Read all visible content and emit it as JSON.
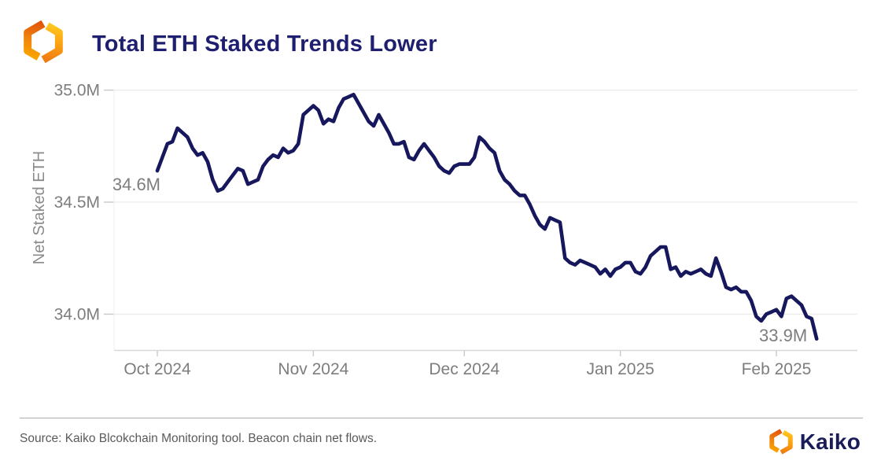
{
  "header": {
    "title": "Total ETH Staked Trends Lower",
    "logo_icon": "kaiko-hexagon-logo"
  },
  "footer": {
    "source_text": "Source: Kaiko Blcokchain Monitoring tool. Beacon chain net flows.",
    "brand_name": "Kaiko",
    "brand_icon": "kaiko-hexagon-logo"
  },
  "colors": {
    "title_navy": "#1f1f70",
    "line_navy": "#17175e",
    "brand_orange_dark": "#e35a0c",
    "brand_orange_light": "#ffbd1c",
    "axis_gray": "#7d7d7d"
  },
  "chart_data": {
    "type": "line",
    "title": "Total ETH Staked Trends Lower",
    "xlabel": "",
    "ylabel": "Net Staked ETH",
    "x_unit": "days since Oct 1 2024",
    "xlim": [
      -8.6,
      139.1
    ],
    "ylim": [
      33.84,
      35.023
    ],
    "grid": "horizontal",
    "line_color": "#17175e",
    "x_ticks": [
      {
        "day": 0,
        "label": "Oct 2024"
      },
      {
        "day": 31,
        "label": "Nov 2024"
      },
      {
        "day": 61,
        "label": "Dec 2024"
      },
      {
        "day": 92,
        "label": "Jan 2025"
      },
      {
        "day": 123,
        "label": "Feb 2025"
      }
    ],
    "y_ticks": [
      {
        "value": 34.0,
        "label": "34.0M"
      },
      {
        "value": 34.5,
        "label": "34.5M"
      },
      {
        "value": 35.0,
        "label": "35.0M"
      }
    ],
    "annotations": [
      {
        "text": "34.6M",
        "day": 0,
        "value": 34.64
      },
      {
        "text": "33.9M",
        "day": 131,
        "value": 33.89
      }
    ],
    "series": [
      {
        "name": "Net Staked ETH (millions)",
        "points": [
          [
            0,
            34.64
          ],
          [
            1,
            34.7
          ],
          [
            2,
            34.76
          ],
          [
            3,
            34.77
          ],
          [
            4,
            34.83
          ],
          [
            5,
            34.81
          ],
          [
            6,
            34.79
          ],
          [
            7,
            34.74
          ],
          [
            8,
            34.71
          ],
          [
            9,
            34.72
          ],
          [
            10,
            34.68
          ],
          [
            11,
            34.6
          ],
          [
            12,
            34.55
          ],
          [
            13,
            34.56
          ],
          [
            14,
            34.59
          ],
          [
            15,
            34.62
          ],
          [
            16,
            34.65
          ],
          [
            17,
            34.64
          ],
          [
            18,
            34.58
          ],
          [
            19,
            34.59
          ],
          [
            20,
            34.6
          ],
          [
            21,
            34.66
          ],
          [
            22,
            34.69
          ],
          [
            23,
            34.71
          ],
          [
            24,
            34.7
          ],
          [
            25,
            34.74
          ],
          [
            26,
            34.72
          ],
          [
            27,
            34.73
          ],
          [
            28,
            34.76
          ],
          [
            29,
            34.89
          ],
          [
            30,
            34.91
          ],
          [
            31,
            34.93
          ],
          [
            32,
            34.91
          ],
          [
            33,
            34.85
          ],
          [
            34,
            34.87
          ],
          [
            35,
            34.86
          ],
          [
            36,
            34.92
          ],
          [
            37,
            34.96
          ],
          [
            38,
            34.97
          ],
          [
            39,
            34.98
          ],
          [
            40,
            34.94
          ],
          [
            41,
            34.9
          ],
          [
            42,
            34.86
          ],
          [
            43,
            34.84
          ],
          [
            44,
            34.89
          ],
          [
            45,
            34.85
          ],
          [
            46,
            34.81
          ],
          [
            47,
            34.76
          ],
          [
            48,
            34.76
          ],
          [
            49,
            34.77
          ],
          [
            50,
            34.7
          ],
          [
            51,
            34.69
          ],
          [
            52,
            34.73
          ],
          [
            53,
            34.76
          ],
          [
            54,
            34.73
          ],
          [
            55,
            34.7
          ],
          [
            56,
            34.66
          ],
          [
            57,
            34.64
          ],
          [
            58,
            34.63
          ],
          [
            59,
            34.66
          ],
          [
            60,
            34.67
          ],
          [
            61,
            34.67
          ],
          [
            62,
            34.67
          ],
          [
            63,
            34.7
          ],
          [
            64,
            34.79
          ],
          [
            65,
            34.77
          ],
          [
            66,
            34.74
          ],
          [
            67,
            34.72
          ],
          [
            68,
            34.64
          ],
          [
            69,
            34.6
          ],
          [
            70,
            34.58
          ],
          [
            71,
            34.55
          ],
          [
            72,
            34.53
          ],
          [
            73,
            34.53
          ],
          [
            74,
            34.49
          ],
          [
            75,
            34.44
          ],
          [
            76,
            34.4
          ],
          [
            77,
            34.38
          ],
          [
            78,
            34.43
          ],
          [
            79,
            34.42
          ],
          [
            80,
            34.41
          ],
          [
            81,
            34.25
          ],
          [
            82,
            34.23
          ],
          [
            83,
            34.22
          ],
          [
            84,
            34.24
          ],
          [
            85,
            34.23
          ],
          [
            86,
            34.22
          ],
          [
            87,
            34.21
          ],
          [
            88,
            34.18
          ],
          [
            89,
            34.2
          ],
          [
            90,
            34.17
          ],
          [
            91,
            34.2
          ],
          [
            92,
            34.21
          ],
          [
            93,
            34.23
          ],
          [
            94,
            34.23
          ],
          [
            95,
            34.19
          ],
          [
            96,
            34.18
          ],
          [
            97,
            34.21
          ],
          [
            98,
            34.26
          ],
          [
            99,
            34.28
          ],
          [
            100,
            34.3
          ],
          [
            101,
            34.3
          ],
          [
            102,
            34.2
          ],
          [
            103,
            34.21
          ],
          [
            104,
            34.17
          ],
          [
            105,
            34.19
          ],
          [
            106,
            34.18
          ],
          [
            107,
            34.19
          ],
          [
            108,
            34.2
          ],
          [
            109,
            34.18
          ],
          [
            110,
            34.17
          ],
          [
            111,
            34.25
          ],
          [
            112,
            34.19
          ],
          [
            113,
            34.12
          ],
          [
            114,
            34.11
          ],
          [
            115,
            34.12
          ],
          [
            116,
            34.1
          ],
          [
            117,
            34.1
          ],
          [
            118,
            34.06
          ],
          [
            119,
            33.99
          ],
          [
            120,
            33.97
          ],
          [
            121,
            34.0
          ],
          [
            122,
            34.01
          ],
          [
            123,
            34.02
          ],
          [
            124,
            33.99
          ],
          [
            125,
            34.07
          ],
          [
            126,
            34.08
          ],
          [
            127,
            34.06
          ],
          [
            128,
            34.04
          ],
          [
            129,
            33.99
          ],
          [
            130,
            33.98
          ],
          [
            131,
            33.89
          ]
        ]
      }
    ]
  }
}
